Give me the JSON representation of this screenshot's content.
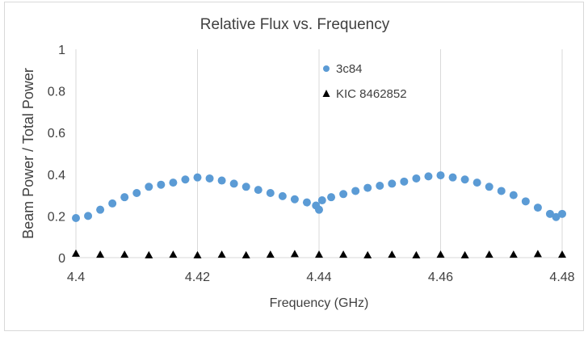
{
  "chart_data": {
    "type": "scatter",
    "title": "Relative Flux vs. Frequency",
    "xlabel": "Frequency (GHz)",
    "ylabel": "Beam Power / Total Power",
    "xlim": [
      4.4,
      4.48
    ],
    "ylim": [
      0,
      1
    ],
    "x_ticks": [
      "4.4",
      "4.42",
      "4.44",
      "4.46",
      "4.48"
    ],
    "y_ticks": [
      "0",
      "0.2",
      "0.4",
      "0.6",
      "0.8",
      "1"
    ],
    "grid": "vertical major gridlines",
    "legend": "top-center",
    "series": [
      {
        "name": "3c84",
        "marker": "circle",
        "color": "#5b9bd5",
        "x": [
          4.4,
          4.402,
          4.404,
          4.406,
          4.408,
          4.41,
          4.412,
          4.414,
          4.416,
          4.418,
          4.42,
          4.422,
          4.424,
          4.426,
          4.428,
          4.43,
          4.432,
          4.434,
          4.436,
          4.438,
          4.4395,
          4.44,
          4.4405,
          4.442,
          4.444,
          4.446,
          4.448,
          4.45,
          4.452,
          4.454,
          4.456,
          4.458,
          4.46,
          4.462,
          4.464,
          4.466,
          4.468,
          4.47,
          4.472,
          4.474,
          4.476,
          4.478,
          4.479,
          4.48
        ],
        "y": [
          0.19,
          0.2,
          0.23,
          0.26,
          0.29,
          0.31,
          0.34,
          0.35,
          0.36,
          0.375,
          0.385,
          0.38,
          0.37,
          0.355,
          0.34,
          0.325,
          0.31,
          0.295,
          0.28,
          0.265,
          0.25,
          0.23,
          0.275,
          0.29,
          0.305,
          0.32,
          0.335,
          0.345,
          0.355,
          0.365,
          0.38,
          0.39,
          0.395,
          0.385,
          0.375,
          0.36,
          0.34,
          0.32,
          0.3,
          0.27,
          0.24,
          0.21,
          0.195,
          0.21
        ]
      },
      {
        "name": "KIC 8462852",
        "marker": "triangle",
        "color": "#000000",
        "x": [
          4.4,
          4.404,
          4.408,
          4.412,
          4.416,
          4.42,
          4.424,
          4.428,
          4.432,
          4.436,
          4.44,
          4.444,
          4.448,
          4.452,
          4.456,
          4.46,
          4.464,
          4.468,
          4.472,
          4.476,
          4.48
        ],
        "y": [
          0.02,
          0.015,
          0.015,
          0.012,
          0.015,
          0.012,
          0.015,
          0.012,
          0.015,
          0.018,
          0.015,
          0.015,
          0.012,
          0.015,
          0.012,
          0.015,
          0.012,
          0.015,
          0.015,
          0.018,
          0.015
        ]
      }
    ]
  }
}
